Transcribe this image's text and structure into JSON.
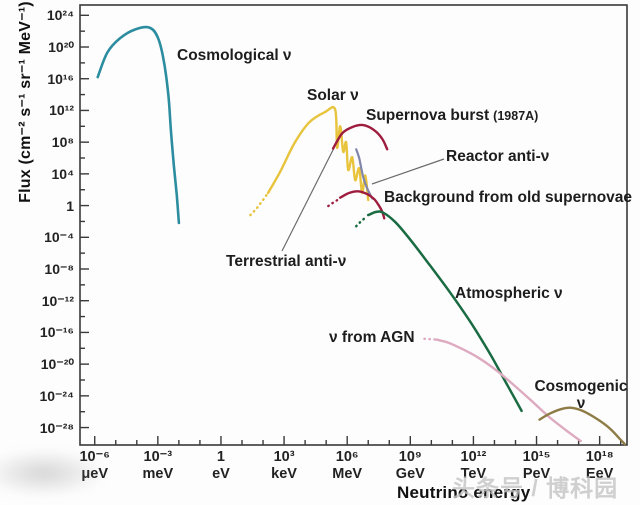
{
  "figure": {
    "y_axis_title": "Flux (cm⁻² s⁻¹ sr⁻¹ MeV⁻¹)",
    "x_axis_title": "Neutrino energy",
    "watermark": "头条号 / 博科园"
  },
  "chart_data": {
    "type": "line",
    "title": "",
    "xlabel": "Neutrino energy",
    "ylabel": "Flux (cm⁻² s⁻¹ sr⁻¹ MeV⁻¹)",
    "x_scale": "log10 of neutrino energy in eV",
    "y_scale": "log10 of flux in cm^-2 s^-1 sr^-1 MeV^-1",
    "xlim": [
      -6.7,
      19.3
    ],
    "ylim": [
      -30.2,
      25.3
    ],
    "grid": false,
    "legend": "inline-annotations",
    "x_ticks": [
      {
        "exp": -6,
        "label": "10⁻⁶",
        "unit": "μeV"
      },
      {
        "exp": -3,
        "label": "10⁻³",
        "unit": "meV"
      },
      {
        "exp": 0,
        "label": "1",
        "unit": "eV"
      },
      {
        "exp": 3,
        "label": "10³",
        "unit": "keV"
      },
      {
        "exp": 6,
        "label": "10⁶",
        "unit": "MeV"
      },
      {
        "exp": 9,
        "label": "10⁹",
        "unit": "GeV"
      },
      {
        "exp": 12,
        "label": "10¹²",
        "unit": "TeV"
      },
      {
        "exp": 15,
        "label": "10¹⁵",
        "unit": "PeV"
      },
      {
        "exp": 18,
        "label": "10¹⁸",
        "unit": "EeV"
      }
    ],
    "x_minor_tick_exponents_range": [
      -6,
      19
    ],
    "y_ticks": [
      {
        "exp": 24,
        "label": "10²⁴"
      },
      {
        "exp": 20,
        "label": "10²⁰"
      },
      {
        "exp": 16,
        "label": "10¹⁶"
      },
      {
        "exp": 12,
        "label": "10¹²"
      },
      {
        "exp": 8,
        "label": "10⁸"
      },
      {
        "exp": 4,
        "label": "10⁴"
      },
      {
        "exp": 0,
        "label": "1"
      },
      {
        "exp": -4,
        "label": "10⁻⁴"
      },
      {
        "exp": -8,
        "label": "10⁻⁸"
      },
      {
        "exp": -12,
        "label": "10⁻¹²"
      },
      {
        "exp": -16,
        "label": "10⁻¹⁶"
      },
      {
        "exp": -20,
        "label": "10⁻²⁰"
      },
      {
        "exp": -24,
        "label": "10⁻²⁴"
      },
      {
        "exp": -28,
        "label": "10⁻²⁸"
      }
    ],
    "y_minor_tick_step": 2,
    "labels": {
      "cosmological": "Cosmological ν",
      "solar": "Solar ν",
      "supernova_main": "Supernova burst",
      "supernova_year": "(1987A)",
      "reactor": "Reactor anti-ν",
      "old_supernovae": "Background from old supernovae",
      "terrestrial": "Terrestrial anti-ν",
      "atmospheric": "Atmospheric ν",
      "agn": "ν from AGN",
      "cosmogenic_line1": "Cosmogenic",
      "cosmogenic_line2": "ν"
    },
    "series": [
      {
        "id": "cosmological",
        "name": "Cosmological ν",
        "color": "#2d8da0",
        "width": 2.6,
        "segments": [
          {
            "style": "solid",
            "points": [
              [
                -5.86,
                16.2
              ],
              [
                -5.4,
                19.3
              ],
              [
                -4.8,
                21.1
              ],
              [
                -4.1,
                22.2
              ],
              [
                -3.4,
                22.45
              ],
              [
                -3.0,
                21.2
              ],
              [
                -2.72,
                18.3
              ],
              [
                -2.5,
                13.9
              ],
              [
                -2.38,
                9.5
              ],
              [
                -2.24,
                5.1
              ],
              [
                -2.1,
                1.3
              ],
              [
                -2.0,
                -2.2
              ]
            ]
          }
        ]
      },
      {
        "id": "solar",
        "name": "Solar ν",
        "color": "#e8c33c",
        "width": 2.4,
        "segments": [
          {
            "style": "dotted",
            "points": [
              [
                1.4,
                -1.2
              ],
              [
                1.7,
                -0.35
              ],
              [
                2.0,
                0.7
              ],
              [
                2.24,
                1.6
              ]
            ]
          },
          {
            "style": "solid",
            "points": [
              [
                2.24,
                1.6
              ],
              [
                2.8,
                4.2
              ],
              [
                3.5,
                7.9
              ],
              [
                4.2,
                10.5
              ],
              [
                4.95,
                11.8
              ],
              [
                5.43,
                12.1
              ],
              [
                5.52,
                7.3
              ],
              [
                5.67,
                10.0
              ],
              [
                5.81,
                6.8
              ],
              [
                5.95,
                8.0
              ],
              [
                6.05,
                4.5
              ],
              [
                6.24,
                6.1
              ],
              [
                6.38,
                3.2
              ],
              [
                6.57,
                4.7
              ],
              [
                6.71,
                1.6
              ],
              [
                6.86,
                3.8
              ],
              [
                7.0,
                0.7
              ]
            ]
          }
        ]
      },
      {
        "id": "supernova_burst",
        "name": "Supernova burst (1987A)",
        "color": "#9e1c3e",
        "width": 2.4,
        "segments": [
          {
            "style": "solid",
            "points": [
              [
                5.33,
                7.2
              ],
              [
                5.76,
                9.1
              ],
              [
                6.24,
                9.9
              ],
              [
                6.76,
                10.15
              ],
              [
                7.29,
                9.5
              ],
              [
                7.67,
                8.4
              ],
              [
                7.9,
                7.1
              ]
            ]
          }
        ]
      },
      {
        "id": "reactor",
        "name": "Reactor anti-ν",
        "color": "#8186ab",
        "width": 2.2,
        "segments": [
          {
            "style": "solid",
            "points": [
              [
                6.43,
                7.1
              ],
              [
                6.57,
                6.0
              ],
              [
                6.67,
                4.7
              ],
              [
                6.76,
                3.6
              ],
              [
                6.9,
                2.5
              ],
              [
                7.05,
                1.6
              ],
              [
                7.19,
                0.9
              ]
            ]
          }
        ]
      },
      {
        "id": "old_supernovae",
        "name": "Background from old supernovae",
        "color": "#9e1c3e",
        "width": 2.4,
        "segments": [
          {
            "style": "dotted",
            "points": [
              [
                5.1,
                -0.05
              ],
              [
                5.38,
                0.45
              ],
              [
                5.67,
                0.9
              ]
            ]
          },
          {
            "style": "solid",
            "points": [
              [
                5.67,
                1.0
              ],
              [
                6.1,
                1.6
              ],
              [
                6.52,
                1.8
              ],
              [
                6.95,
                1.45
              ],
              [
                7.29,
                0.8
              ],
              [
                7.52,
                -0.05
              ],
              [
                7.67,
                -0.8
              ],
              [
                7.76,
                -1.6
              ]
            ]
          }
        ]
      },
      {
        "id": "atmospheric",
        "name": "Atmospheric ν",
        "color": "#1a6b42",
        "width": 2.5,
        "segments": [
          {
            "style": "dotted",
            "points": [
              [
                6.43,
                -2.6
              ],
              [
                6.67,
                -1.95
              ],
              [
                6.9,
                -1.45
              ]
            ]
          },
          {
            "style": "solid",
            "points": [
              [
                7.0,
                -1.2
              ],
              [
                7.38,
                -0.8
              ],
              [
                7.71,
                -0.9
              ],
              [
                8.29,
                -2.1
              ],
              [
                9.0,
                -4.3
              ],
              [
                9.95,
                -7.6
              ],
              [
                10.9,
                -11.0
              ],
              [
                11.86,
                -14.7
              ],
              [
                12.81,
                -18.8
              ],
              [
                13.52,
                -22.2
              ],
              [
                14.0,
                -24.5
              ],
              [
                14.29,
                -25.9
              ]
            ]
          }
        ]
      },
      {
        "id": "agn",
        "name": "ν from AGN",
        "color": "#ddaac0",
        "width": 2.4,
        "segments": [
          {
            "style": "dotted",
            "points": [
              [
                9.67,
                -16.8
              ],
              [
                9.95,
                -16.85
              ],
              [
                10.24,
                -16.9
              ]
            ]
          },
          {
            "style": "solid",
            "points": [
              [
                10.24,
                -16.9
              ],
              [
                10.81,
                -17.3
              ],
              [
                11.48,
                -18.1
              ],
              [
                12.24,
                -19.2
              ],
              [
                13.05,
                -20.7
              ],
              [
                13.86,
                -22.5
              ],
              [
                14.71,
                -24.5
              ],
              [
                15.57,
                -26.6
              ],
              [
                16.38,
                -28.3
              ],
              [
                17.1,
                -29.7
              ]
            ]
          }
        ]
      },
      {
        "id": "cosmogenic",
        "name": "Cosmogenic ν",
        "color": "#8e7c46",
        "width": 2.4,
        "segments": [
          {
            "style": "solid",
            "points": [
              [
                15.14,
                -27.0
              ],
              [
                15.62,
                -26.25
              ],
              [
                16.14,
                -25.7
              ],
              [
                16.62,
                -25.5
              ],
              [
                17.19,
                -25.9
              ],
              [
                17.86,
                -26.9
              ],
              [
                18.48,
                -28.1
              ],
              [
                18.95,
                -29.4
              ],
              [
                19.2,
                -30.1
              ]
            ]
          }
        ]
      }
    ]
  }
}
